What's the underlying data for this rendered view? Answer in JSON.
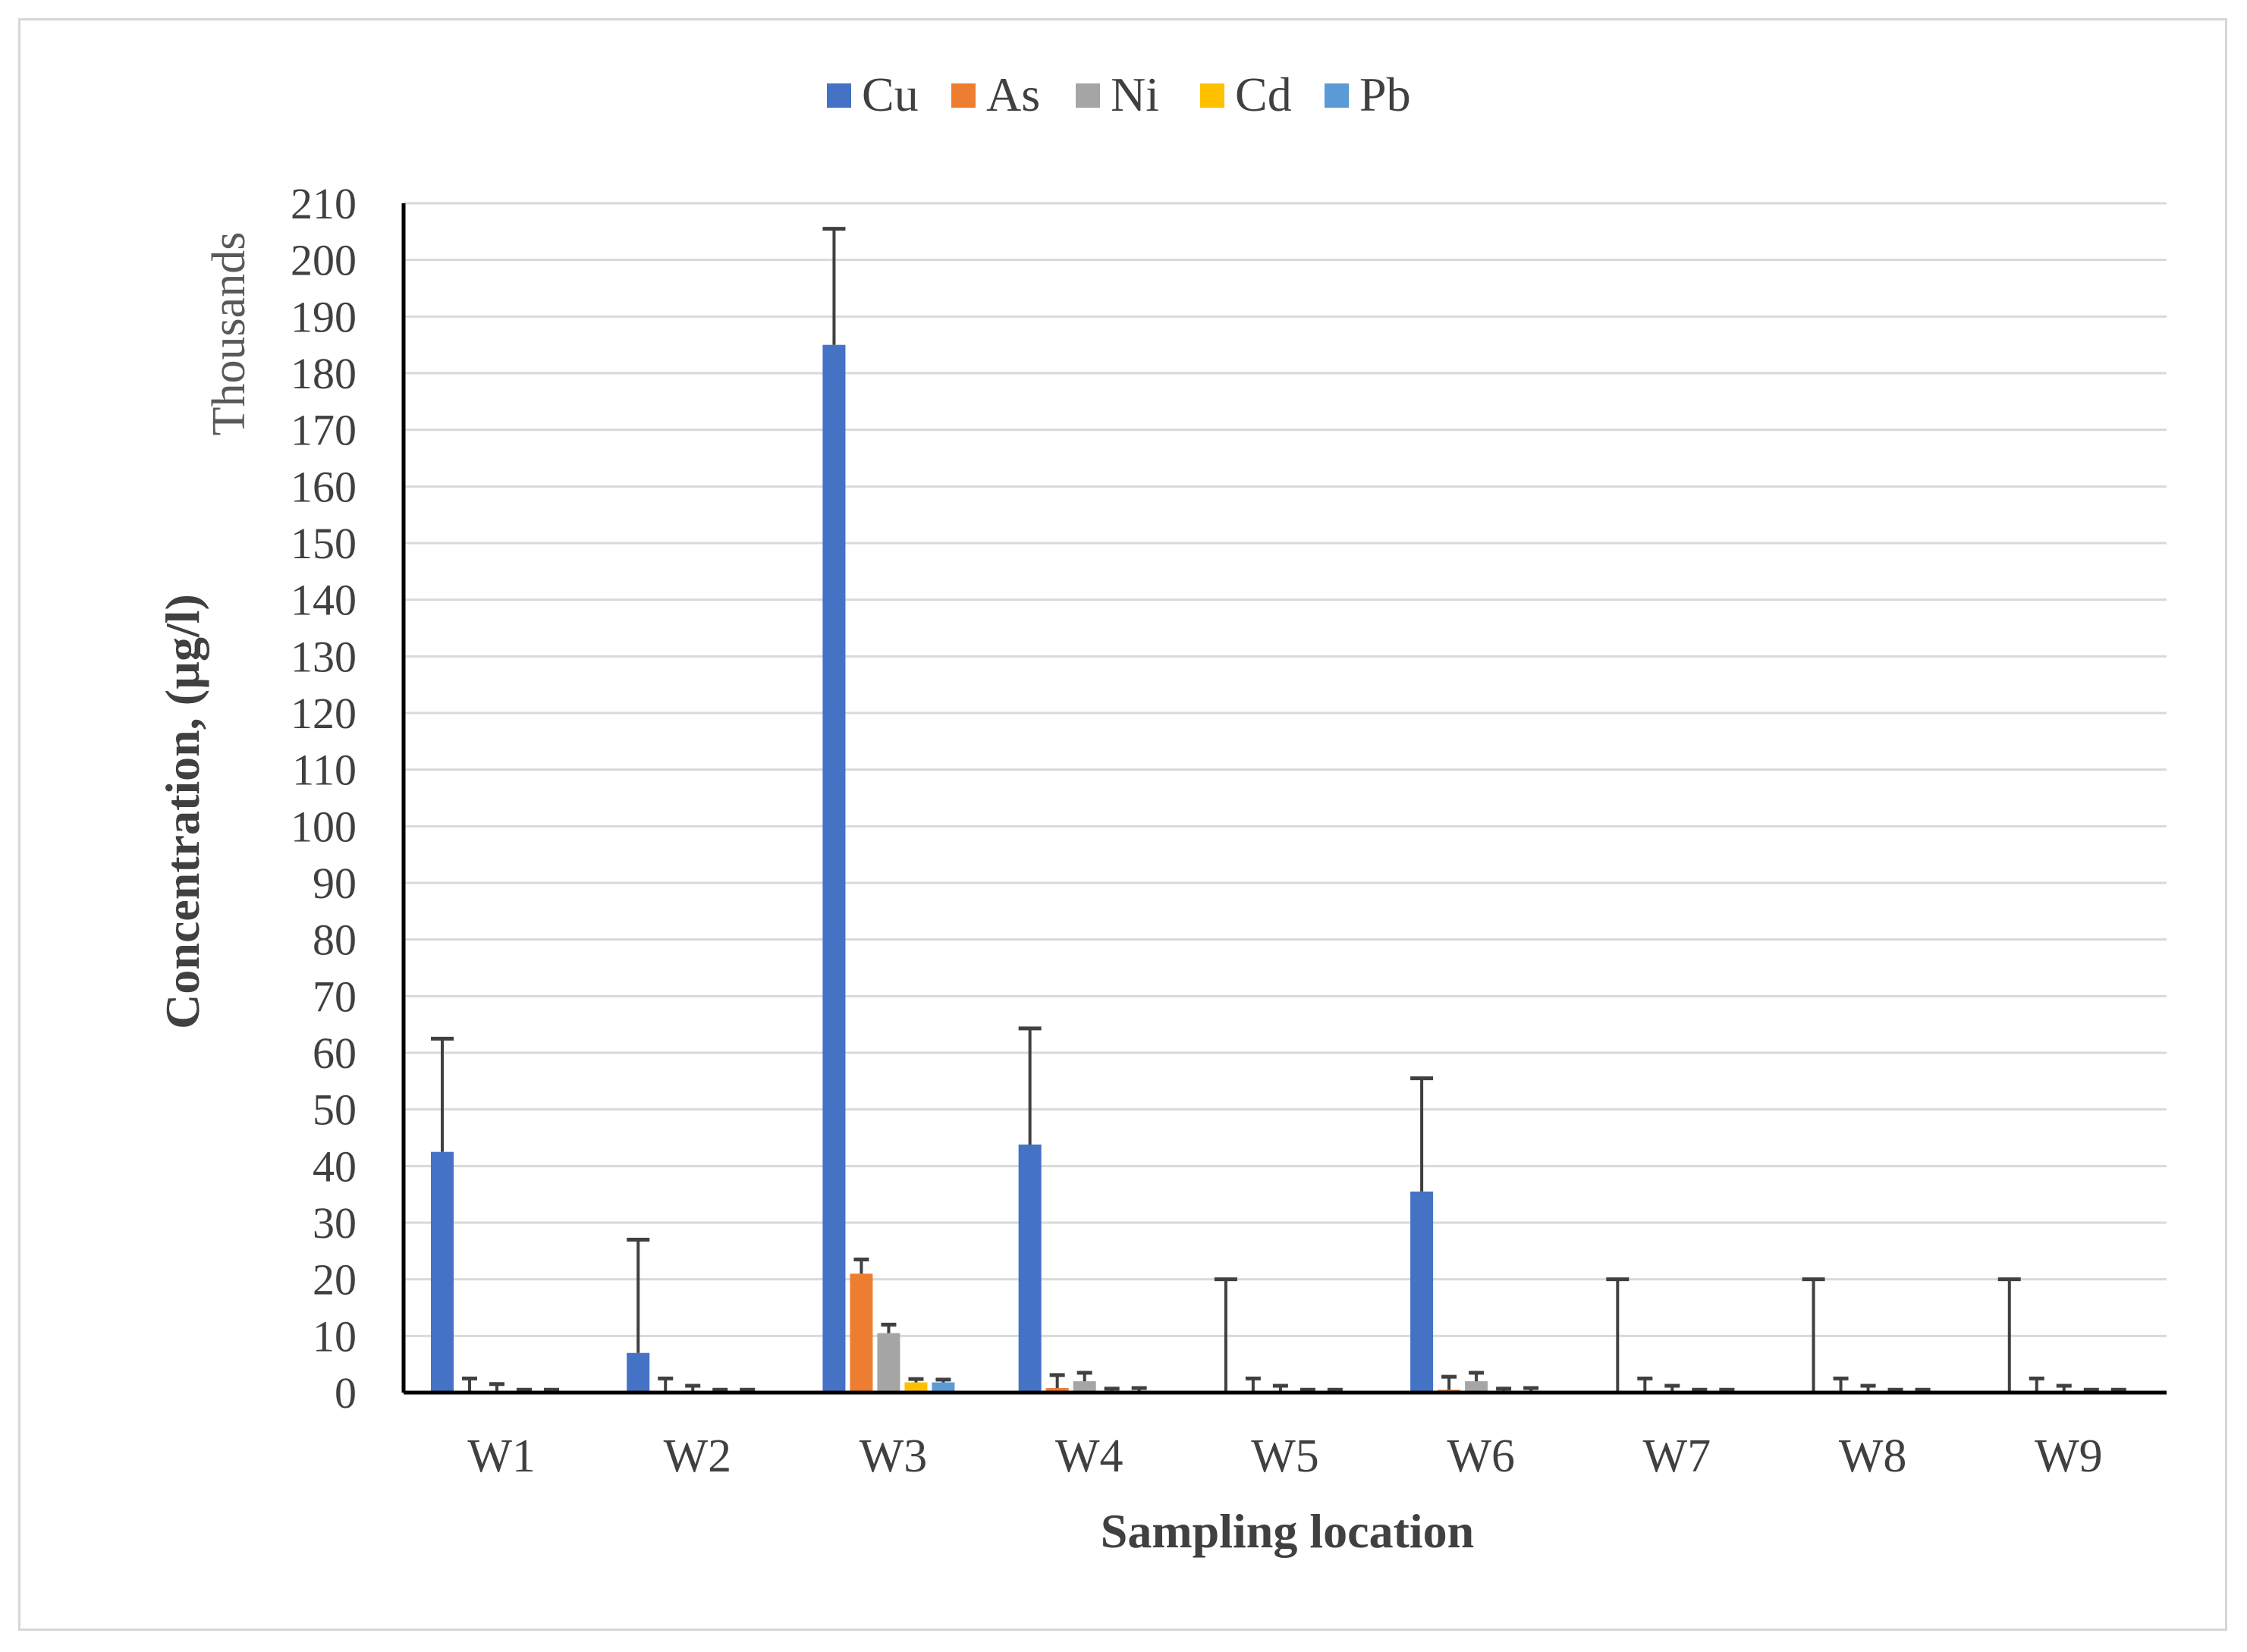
{
  "chart_data": {
    "type": "bar",
    "title": "",
    "xlabel": "Sampling location",
    "ylabel": "Concentration, (µg/l)",
    "y_units_label": "Thousands",
    "ylim": [
      0,
      210
    ],
    "yticks": [
      0,
      10,
      20,
      30,
      40,
      50,
      60,
      70,
      80,
      90,
      100,
      110,
      120,
      130,
      140,
      150,
      160,
      170,
      180,
      190,
      200,
      210
    ],
    "grid": true,
    "legend_position": "top",
    "categories": [
      "W1",
      "W2",
      "W3",
      "W4",
      "W5",
      "W6",
      "W7",
      "W8",
      "W9"
    ],
    "series": [
      {
        "name": "Cu",
        "color": "#4472c4",
        "values": [
          42.5,
          7.0,
          185.0,
          43.8,
          0.0,
          35.5,
          0.0,
          0.0,
          0.0
        ],
        "error": [
          20.0,
          20.0,
          20.5,
          20.5,
          20.0,
          20.0,
          20.0,
          20.0,
          20.0
        ]
      },
      {
        "name": "As",
        "color": "#ed7d31",
        "values": [
          0.3,
          0.3,
          21.0,
          0.8,
          0.2,
          0.5,
          0.2,
          0.2,
          0.2
        ],
        "error": [
          2.2,
          2.2,
          2.5,
          2.3,
          2.3,
          2.3,
          2.3,
          2.3,
          2.3
        ]
      },
      {
        "name": "Ni",
        "color": "#a5a5a5",
        "values": [
          0.2,
          0.2,
          10.5,
          2.0,
          0.2,
          2.0,
          0.2,
          0.2,
          0.2
        ],
        "error": [
          1.3,
          1.0,
          1.5,
          1.5,
          1.0,
          1.5,
          1.0,
          1.0,
          1.0
        ]
      },
      {
        "name": "Cd",
        "color": "#ffc000",
        "values": [
          0.1,
          0.1,
          1.8,
          0.2,
          0.1,
          0.2,
          0.1,
          0.1,
          0.1
        ],
        "error": [
          0.4,
          0.4,
          0.6,
          0.5,
          0.4,
          0.5,
          0.4,
          0.4,
          0.4
        ]
      },
      {
        "name": "Pb",
        "color": "#5b9bd5",
        "values": [
          0.1,
          0.1,
          1.8,
          0.3,
          0.1,
          0.3,
          0.1,
          0.1,
          0.1
        ],
        "error": [
          0.4,
          0.4,
          0.5,
          0.5,
          0.4,
          0.5,
          0.4,
          0.4,
          0.4
        ]
      }
    ]
  }
}
